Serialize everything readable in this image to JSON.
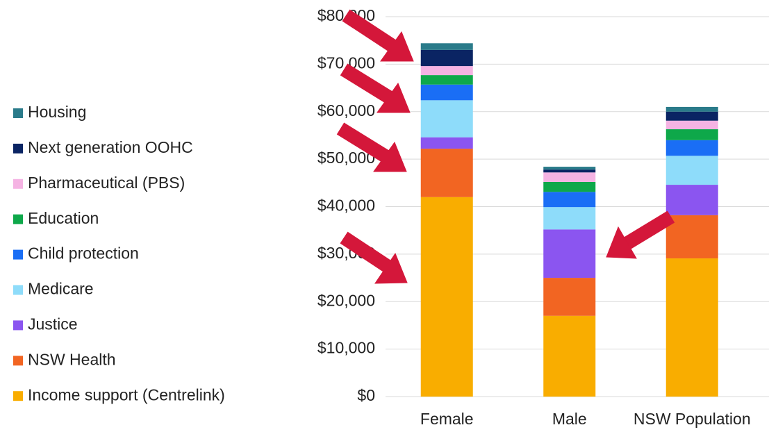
{
  "chart_data": {
    "type": "stacked_bar",
    "categories": [
      "Female",
      "Male",
      "NSW Population"
    ],
    "series": [
      {
        "name": "Income support (Centrelink)",
        "color": "#f9ad00",
        "values": [
          42000,
          17000,
          29100
        ]
      },
      {
        "name": "NSW Health",
        "color": "#f26522",
        "values": [
          10200,
          8000,
          9100
        ]
      },
      {
        "name": "Justice",
        "color": "#8b55f0",
        "values": [
          2400,
          10200,
          6400
        ]
      },
      {
        "name": "Medicare",
        "color": "#8edcfa",
        "values": [
          7800,
          4700,
          6100
        ]
      },
      {
        "name": "Child protection",
        "color": "#1a6ef5",
        "values": [
          3300,
          3200,
          3300
        ]
      },
      {
        "name": "Education",
        "color": "#0ea84a",
        "values": [
          2000,
          2100,
          2300
        ]
      },
      {
        "name": "Pharmaceutical (PBS)",
        "color": "#f5b3e3",
        "values": [
          1900,
          2000,
          1800
        ]
      },
      {
        "name": "Next generation OOHC",
        "color": "#0a2463",
        "values": [
          3400,
          600,
          1900
        ]
      },
      {
        "name": "Housing",
        "color": "#2a7b8a",
        "values": [
          1400,
          600,
          1000
        ]
      }
    ],
    "ylim": [
      0,
      80000
    ],
    "yticks": [
      {
        "value": 0,
        "label": "$0"
      },
      {
        "value": 10000,
        "label": "$10,000"
      },
      {
        "value": 20000,
        "label": "$20,000"
      },
      {
        "value": 30000,
        "label": "$30,000"
      },
      {
        "value": 40000,
        "label": "$40,000"
      },
      {
        "value": 50000,
        "label": "$50,000"
      },
      {
        "value": 60000,
        "label": "$60,000"
      },
      {
        "value": 70000,
        "label": "$70,000"
      },
      {
        "value": 80000,
        "label": "$80,000"
      }
    ],
    "grid": true,
    "legend": "left"
  }
}
